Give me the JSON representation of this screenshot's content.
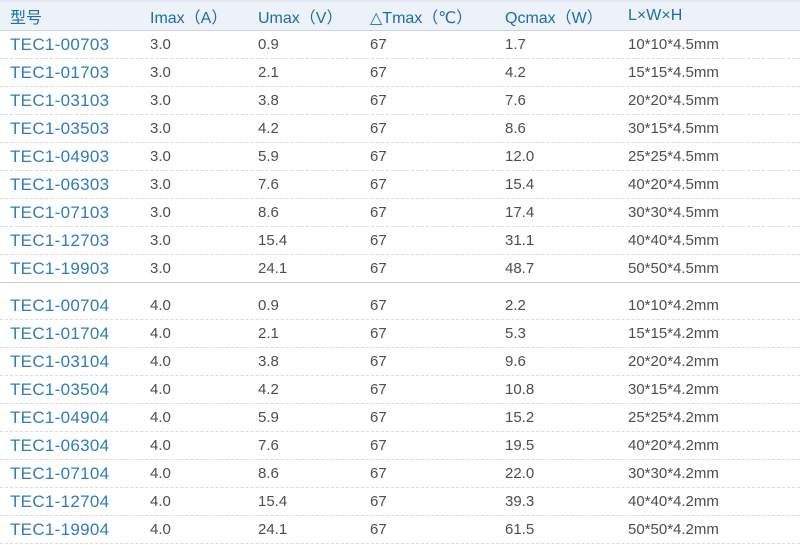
{
  "chart_data": {
    "type": "table",
    "columns": [
      "型号",
      "Imax（A）",
      "Umax（V）",
      "△Tmax（℃）",
      "Qcmax（W）",
      "L×W×H"
    ],
    "groups": [
      {
        "rows": [
          [
            "TEC1-00703",
            "3.0",
            "0.9",
            "67",
            "1.7",
            "10*10*4.5mm"
          ],
          [
            "TEC1-01703",
            "3.0",
            "2.1",
            "67",
            "4.2",
            "15*15*4.5mm"
          ],
          [
            "TEC1-03103",
            "3.0",
            "3.8",
            "67",
            "7.6",
            "20*20*4.5mm"
          ],
          [
            "TEC1-03503",
            "3.0",
            "4.2",
            "67",
            "8.6",
            "30*15*4.5mm"
          ],
          [
            "TEC1-04903",
            "3.0",
            "5.9",
            "67",
            "12.0",
            "25*25*4.5mm"
          ],
          [
            "TEC1-06303",
            "3.0",
            "7.6",
            "67",
            "15.4",
            "40*20*4.5mm"
          ],
          [
            "TEC1-07103",
            "3.0",
            "8.6",
            "67",
            "17.4",
            "30*30*4.5mm"
          ],
          [
            "TEC1-12703",
            "3.0",
            "15.4",
            "67",
            "31.1",
            "40*40*4.5mm"
          ],
          [
            "TEC1-19903",
            "3.0",
            "24.1",
            "67",
            "48.7",
            "50*50*4.5mm"
          ]
        ]
      },
      {
        "rows": [
          [
            "TEC1-00704",
            "4.0",
            "0.9",
            "67",
            "2.2",
            "10*10*4.2mm"
          ],
          [
            "TEC1-01704",
            "4.0",
            "2.1",
            "67",
            "5.3",
            "15*15*4.2mm"
          ],
          [
            "TEC1-03104",
            "4.0",
            "3.8",
            "67",
            "9.6",
            "20*20*4.2mm"
          ],
          [
            "TEC1-03504",
            "4.0",
            "4.2",
            "67",
            "10.8",
            "30*15*4.2mm"
          ],
          [
            "TEC1-04904",
            "4.0",
            "5.9",
            "67",
            "15.2",
            "25*25*4.2mm"
          ],
          [
            "TEC1-06304",
            "4.0",
            "7.6",
            "67",
            "19.5",
            "40*20*4.2mm"
          ],
          [
            "TEC1-07104",
            "4.0",
            "8.6",
            "67",
            "22.0",
            "30*30*4.2mm"
          ],
          [
            "TEC1-12704",
            "4.0",
            "15.4",
            "67",
            "39.3",
            "40*40*4.2mm"
          ],
          [
            "TEC1-19904",
            "4.0",
            "24.1",
            "67",
            "61.5",
            "50*50*4.2mm"
          ]
        ]
      }
    ],
    "title": "",
    "layout": {
      "grid": "dashed row separators, solid separator between groups",
      "header_background": "#edf2f8"
    }
  },
  "colors": {
    "header_background": "#edf2f8",
    "header_text": "#1b6dad",
    "model_text": "#2e7db8",
    "data_text": "#4d4d4d",
    "dashed_divider": "#d9d9d9",
    "solid_divider": "#cdcdcd"
  }
}
